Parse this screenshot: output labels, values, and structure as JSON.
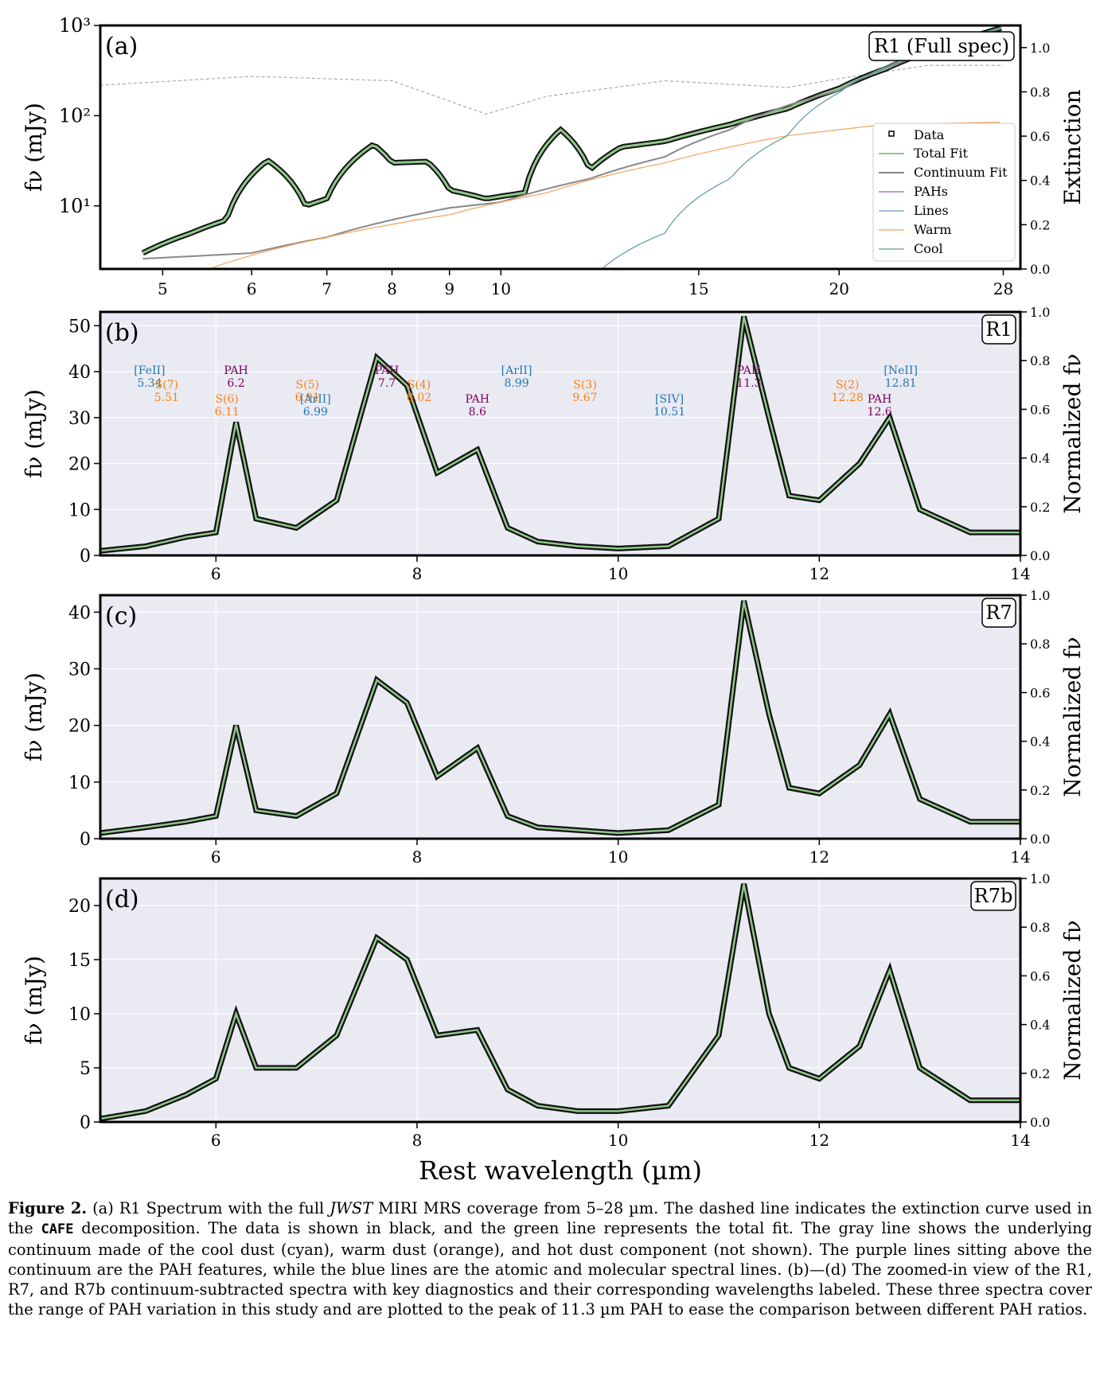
{
  "figure": {
    "shared_xlabel": "Rest wavelength (µm)",
    "panels": [
      {
        "id": "a",
        "panel_label": "(a)",
        "tag": "R1 (Full spec)",
        "ylabel": "fν (mJy)",
        "y2label": "Extinction",
        "yscale": "log",
        "ylim": [
          2,
          1000
        ],
        "xlim": [
          4.4,
          29
        ],
        "xscale": "log",
        "y_ticks": [
          "10¹",
          "10²",
          "10³"
        ],
        "y2_ticks": [
          "0.0",
          "0.2",
          "0.4",
          "0.6",
          "0.8",
          "1.0"
        ],
        "x_ticks": [
          "5",
          "6",
          "7",
          "8",
          "9",
          "10",
          "15",
          "20",
          "28"
        ],
        "legend": [
          "Data",
          "Total Fit",
          "Continuum Fit",
          "PAHs",
          "Lines",
          "Warm",
          "Cool"
        ]
      },
      {
        "id": "b",
        "panel_label": "(b)",
        "tag": "R1",
        "ylabel": "fν (mJy)",
        "y2label": "Normalized fν",
        "ylim": [
          0,
          53
        ],
        "y_ticks": [
          "0",
          "10",
          "20",
          "30",
          "40",
          "50"
        ],
        "y2_ticks": [
          "0.0",
          "0.2",
          "0.4",
          "0.6",
          "0.8",
          "1.0"
        ],
        "x_ticks": [
          "6",
          "8",
          "10",
          "12",
          "14"
        ],
        "xlim": [
          4.85,
          14
        ],
        "annotations": [
          {
            "name": "[FeII]",
            "wav": "5.34",
            "color": "#1f77b4"
          },
          {
            "name": "S(7)",
            "wav": "5.51",
            "color": "#ff7f0e"
          },
          {
            "name": "S(6)",
            "wav": "6.11",
            "color": "#ff7f0e"
          },
          {
            "name": "PAH",
            "wav": "6.2",
            "color": "#800060"
          },
          {
            "name": "S(5)",
            "wav": "6.91",
            "color": "#ff7f0e"
          },
          {
            "name": "[ArII]",
            "wav": "6.99",
            "color": "#1f77b4"
          },
          {
            "name": "PAH",
            "wav": "7.7",
            "color": "#800060"
          },
          {
            "name": "S(4)",
            "wav": "8.02",
            "color": "#ff7f0e"
          },
          {
            "name": "PAH",
            "wav": "8.6",
            "color": "#800060"
          },
          {
            "name": "[ArII]",
            "wav": "8.99",
            "color": "#1f77b4"
          },
          {
            "name": "S(3)",
            "wav": "9.67",
            "color": "#ff7f0e"
          },
          {
            "name": "[SIV]",
            "wav": "10.51",
            "color": "#1f77b4"
          },
          {
            "name": "PAH",
            "wav": "11.3",
            "color": "#800060"
          },
          {
            "name": "S(2)",
            "wav": "12.28",
            "color": "#ff7f0e"
          },
          {
            "name": "PAH",
            "wav": "12.6",
            "color": "#800060"
          },
          {
            "name": "[NeII]",
            "wav": "12.81",
            "color": "#1f77b4"
          }
        ]
      },
      {
        "id": "c",
        "panel_label": "(c)",
        "tag": "R7",
        "ylabel": "fν (mJy)",
        "y2label": "Normalized fν",
        "ylim": [
          0,
          43
        ],
        "y_ticks": [
          "0",
          "10",
          "20",
          "30",
          "40"
        ],
        "y2_ticks": [
          "0.0",
          "0.2",
          "0.4",
          "0.6",
          "0.8",
          "1.0"
        ],
        "x_ticks": [
          "6",
          "8",
          "10",
          "12",
          "14"
        ],
        "xlim": [
          4.85,
          14
        ]
      },
      {
        "id": "d",
        "panel_label": "(d)",
        "tag": "R7b",
        "ylabel": "fν (mJy)",
        "y2label": "Normalized fν",
        "ylim": [
          0,
          22.5
        ],
        "y_ticks": [
          "0",
          "5",
          "10",
          "15",
          "20"
        ],
        "y2_ticks": [
          "0.0",
          "0.2",
          "0.4",
          "0.6",
          "0.8",
          "1.0"
        ],
        "x_ticks": [
          "6",
          "8",
          "10",
          "12",
          "14"
        ],
        "xlim": [
          4.85,
          14
        ]
      }
    ]
  },
  "chart_data": [
    {
      "type": "line",
      "panel": "a",
      "series": [
        {
          "name": "Total Fit",
          "x": [
            4.8,
            5.3,
            5.7,
            6.2,
            6.7,
            7.0,
            7.7,
            8.0,
            8.6,
            9.0,
            9.7,
            10.5,
            11.3,
            12.0,
            12.8,
            14,
            16,
            18,
            20,
            22,
            25,
            28
          ],
          "values": [
            3,
            5,
            7,
            32,
            10,
            12,
            48,
            30,
            31,
            15,
            12,
            14,
            70,
            25,
            45,
            52,
            80,
            120,
            200,
            330,
            600,
            950
          ]
        },
        {
          "name": "Continuum Fit",
          "x": [
            4.8,
            6,
            7,
            8,
            9,
            10,
            12,
            14,
            16,
            20,
            25,
            28
          ],
          "values": [
            2.6,
            3,
            4.5,
            7,
            9.5,
            11,
            20,
            35,
            70,
            190,
            560,
            950
          ]
        },
        {
          "name": "Warm",
          "x": [
            5.5,
            7,
            9,
            11,
            14,
            18,
            22,
            28
          ],
          "values": [
            2,
            4.5,
            8,
            14,
            30,
            60,
            80,
            85
          ]
        },
        {
          "name": "Cool",
          "x": [
            12.3,
            14,
            16,
            18,
            20,
            24,
            28
          ],
          "values": [
            2,
            5,
            20,
            60,
            180,
            520,
            950
          ]
        }
      ]
    },
    {
      "type": "line",
      "panel": "b",
      "series": [
        {
          "name": "Total Fit",
          "x": [
            4.85,
            5.3,
            5.7,
            6.0,
            6.2,
            6.4,
            6.8,
            7.2,
            7.6,
            7.9,
            8.2,
            8.6,
            8.9,
            9.2,
            9.6,
            10.0,
            10.5,
            11.0,
            11.25,
            11.5,
            11.7,
            12.0,
            12.4,
            12.7,
            13.0,
            13.5,
            14.0
          ],
          "values": [
            1,
            2,
            4,
            5,
            29,
            8,
            6,
            12,
            43,
            37,
            18,
            23,
            6,
            3,
            2,
            1.5,
            2,
            8,
            52,
            30,
            13,
            12,
            20,
            30,
            10,
            5,
            5
          ]
        }
      ]
    },
    {
      "type": "line",
      "panel": "c",
      "series": [
        {
          "name": "Total Fit",
          "x": [
            4.85,
            5.3,
            5.7,
            6.0,
            6.2,
            6.4,
            6.8,
            7.2,
            7.6,
            7.9,
            8.2,
            8.6,
            8.9,
            9.2,
            9.6,
            10.0,
            10.5,
            11.0,
            11.25,
            11.5,
            11.7,
            12.0,
            12.4,
            12.7,
            13.0,
            13.5,
            14.0
          ],
          "values": [
            1,
            2,
            3,
            4,
            20,
            5,
            4,
            8,
            28,
            24,
            11,
            16,
            4,
            2,
            1.5,
            1,
            1.5,
            6,
            42,
            22,
            9,
            8,
            13,
            22,
            7,
            3,
            3
          ]
        }
      ]
    },
    {
      "type": "line",
      "panel": "d",
      "series": [
        {
          "name": "Total Fit",
          "x": [
            4.85,
            5.3,
            5.7,
            6.0,
            6.2,
            6.4,
            6.8,
            7.2,
            7.6,
            7.9,
            8.2,
            8.6,
            8.9,
            9.2,
            9.6,
            10.0,
            10.5,
            11.0,
            11.25,
            11.5,
            11.7,
            12.0,
            12.4,
            12.7,
            13.0,
            13.5,
            14.0
          ],
          "values": [
            0.3,
            1,
            2.5,
            4,
            10,
            5,
            5,
            8,
            17,
            15,
            8,
            8.5,
            3,
            1.5,
            1,
            1,
            1.5,
            8,
            22,
            10,
            5,
            4,
            7,
            14,
            5,
            2,
            2
          ]
        }
      ]
    }
  ],
  "caption": {
    "label": "Figure 2.",
    "seg1": " (a) R1 Spectrum with the full ",
    "jwst": "JWST",
    "seg2": " MIRI MRS coverage from 5–28 µm. The dashed line indicates the extinction curve used in the ",
    "cafe": "CAFE",
    "seg3": " decomposition. The data is shown in black, and the green line represents the total fit. The gray line shows the underlying continuum made of the cool dust (cyan), warm dust (orange), and hot dust component (not shown). The purple lines sitting above the continuum are the PAH features, while the blue lines are the atomic and molecular spectral lines. (b)—(d) The zoomed-in view of the R1, R7, and R7b continuum-subtracted spectra with key diagnostics and their corresponding wavelengths labeled. These three spectra cover the range of PAH variation in this study and are plotted to the peak of 11.3 µm PAH to ease the comparison between different PAH ratios."
  }
}
